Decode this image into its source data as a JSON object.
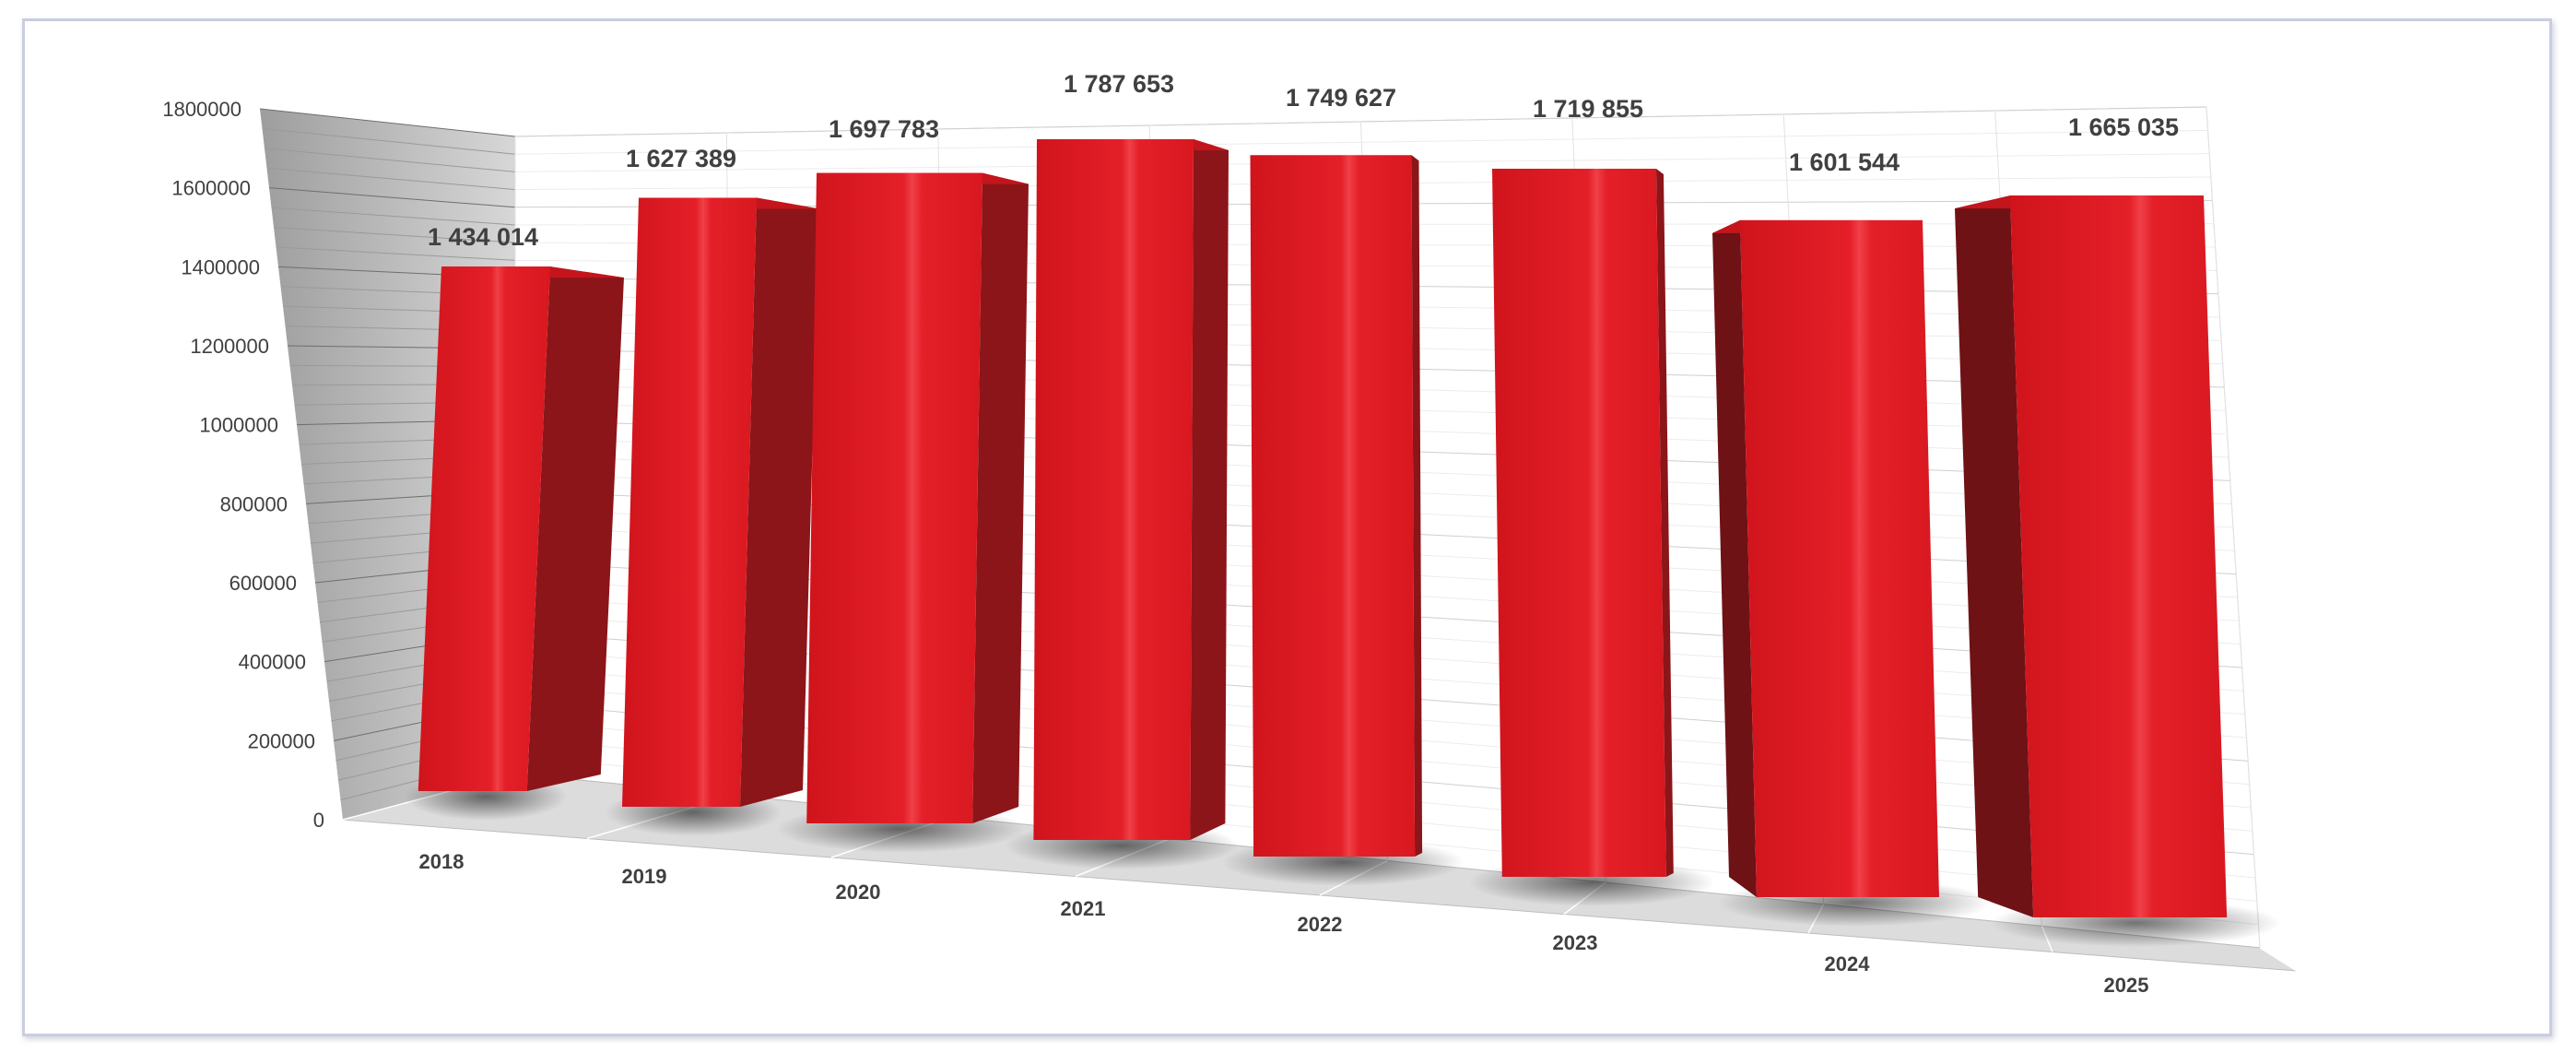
{
  "chart_data": {
    "type": "bar",
    "style": "3d-column",
    "categories": [
      "2018",
      "2019",
      "2020",
      "2021",
      "2022",
      "2023",
      "2024",
      "2025"
    ],
    "values": [
      1434014,
      1627389,
      1697783,
      1787653,
      1749627,
      1719855,
      1601544,
      1665035
    ],
    "data_labels": [
      "1 434 014",
      "1 627 389",
      "1 697 783",
      "1 787 653",
      "1 749 627",
      "1 719 855",
      "1 601 544",
      "1 665 035"
    ],
    "y_ticks": [
      "0",
      "200000",
      "400000",
      "600000",
      "800000",
      "1000000",
      "1200000",
      "1400000",
      "1600000",
      "1800000"
    ],
    "ylim": [
      0,
      1800000
    ],
    "title": "",
    "xlabel": "",
    "ylabel": "",
    "grid": true,
    "legend": "none",
    "colors": {
      "bar": "#e8202a",
      "bar_side": "#8a1418",
      "bar_top": "#f0474d",
      "grid": "#cfcfcf",
      "text": "#404040"
    }
  }
}
